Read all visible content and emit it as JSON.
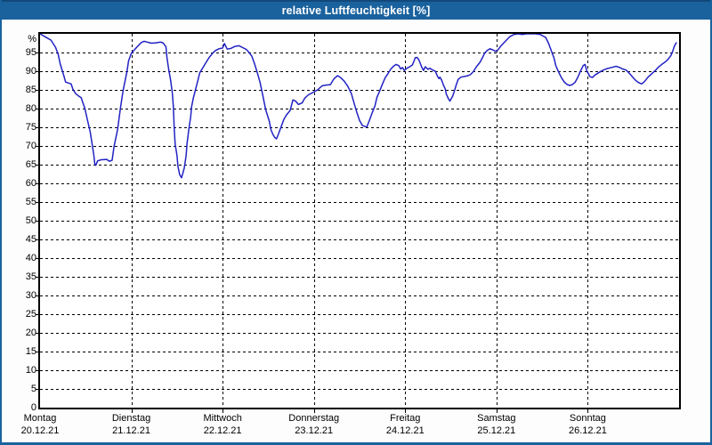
{
  "window": {
    "title": "relative Luftfeuchtigkeit [%]"
  },
  "colors": {
    "titlebar_bg": "#1a629e",
    "titlebar_top_edge": "#11497a",
    "frame_border": "#1a629e",
    "window_bg": "#fcfdfc",
    "plot_bg": "#ffffff",
    "axis": "#000000",
    "grid": "#000000",
    "line": "#2222c4",
    "text": "#000000",
    "title_text": "#ffffff"
  },
  "chart_data": {
    "type": "line",
    "title": "relative Luftfeuchtigkeit [%]",
    "ylabel": "%",
    "xlabel": "",
    "ylim": [
      0,
      100
    ],
    "ytick_step": 5,
    "xlim_days": [
      0,
      7
    ],
    "grid": "dashed black, horizontal every 5 %, vertical at each day boundary",
    "legend": "none",
    "yticks": [
      [
        100,
        "%"
      ],
      [
        95,
        "95"
      ],
      [
        90,
        "90"
      ],
      [
        85,
        "85"
      ],
      [
        80,
        "80"
      ],
      [
        75,
        "75"
      ],
      [
        70,
        "70"
      ],
      [
        65,
        "65"
      ],
      [
        60,
        "60"
      ],
      [
        55,
        "55"
      ],
      [
        50,
        "50"
      ],
      [
        45,
        "45"
      ],
      [
        40,
        "40"
      ],
      [
        35,
        "35"
      ],
      [
        30,
        "30"
      ],
      [
        25,
        "25"
      ],
      [
        20,
        "20"
      ],
      [
        15,
        "15"
      ],
      [
        10,
        "10"
      ],
      [
        5,
        "5"
      ],
      [
        0,
        "0"
      ]
    ],
    "days": [
      {
        "name": "Montag",
        "date": "20.12.21"
      },
      {
        "name": "Dienstag",
        "date": "21.12.21"
      },
      {
        "name": "Mittwoch",
        "date": "22.12.21"
      },
      {
        "name": "Donnerstag",
        "date": "23.12.21"
      },
      {
        "name": "Freitag",
        "date": "24.12.21"
      },
      {
        "name": "Samstag",
        "date": "25.12.21"
      },
      {
        "name": "Sonntag",
        "date": "26.12.21"
      }
    ],
    "series": [
      {
        "name": "relative Luftfeuchtigkeit",
        "unit": "%",
        "color": "#2222c4",
        "x_unit": "days since Montag 20.12.21 00:00",
        "points": [
          [
            0,
            100
          ],
          [
            0.07,
            99
          ],
          [
            0.12,
            98.3
          ],
          [
            0.17,
            96.4
          ],
          [
            0.2,
            94.4
          ],
          [
            0.22,
            92
          ],
          [
            0.26,
            88.8
          ],
          [
            0.28,
            87.1
          ],
          [
            0.34,
            86.6
          ],
          [
            0.36,
            85.2
          ],
          [
            0.39,
            84
          ],
          [
            0.42,
            83.4
          ],
          [
            0.45,
            82.9
          ],
          [
            0.49,
            80.1
          ],
          [
            0.52,
            76.9
          ],
          [
            0.55,
            73.7
          ],
          [
            0.57,
            70.5
          ],
          [
            0.59,
            67.4
          ],
          [
            0.6,
            65.2
          ],
          [
            0.61,
            64.8
          ],
          [
            0.63,
            66
          ],
          [
            0.67,
            66.3
          ],
          [
            0.73,
            66.4
          ],
          [
            0.76,
            65.9
          ],
          [
            0.79,
            66.2
          ],
          [
            0.81,
            69.8
          ],
          [
            0.85,
            74.5
          ],
          [
            0.88,
            80.1
          ],
          [
            0.91,
            84.8
          ],
          [
            0.95,
            89.6
          ],
          [
            0.97,
            92.8
          ],
          [
            1,
            94.8
          ],
          [
            1.04,
            95.9
          ],
          [
            1.07,
            96.7
          ],
          [
            1.11,
            97.7
          ],
          [
            1.14,
            98
          ],
          [
            1.17,
            97.8
          ],
          [
            1.22,
            97.5
          ],
          [
            1.27,
            97.6
          ],
          [
            1.32,
            97.8
          ],
          [
            1.35,
            97.5
          ],
          [
            1.38,
            96.5
          ],
          [
            1.39,
            93.6
          ],
          [
            1.41,
            90.4
          ],
          [
            1.43,
            87.6
          ],
          [
            1.45,
            84
          ],
          [
            1.46,
            80.5
          ],
          [
            1.47,
            74.5
          ],
          [
            1.48,
            70.5
          ],
          [
            1.5,
            67.4
          ],
          [
            1.51,
            64.6
          ],
          [
            1.53,
            62.3
          ],
          [
            1.55,
            61.5
          ],
          [
            1.56,
            62.3
          ],
          [
            1.58,
            64.2
          ],
          [
            1.6,
            67.4
          ],
          [
            1.61,
            70.5
          ],
          [
            1.63,
            74.5
          ],
          [
            1.65,
            77.7
          ],
          [
            1.66,
            80.5
          ],
          [
            1.68,
            82.9
          ],
          [
            1.7,
            84.8
          ],
          [
            1.73,
            87.6
          ],
          [
            1.75,
            89.6
          ],
          [
            1.79,
            91.2
          ],
          [
            1.82,
            92.4
          ],
          [
            1.85,
            93.6
          ],
          [
            1.89,
            94.8
          ],
          [
            1.92,
            95.5
          ],
          [
            1.96,
            96
          ],
          [
            2,
            96.2
          ],
          [
            2.02,
            97.4
          ],
          [
            2.05,
            95.9
          ],
          [
            2.09,
            96.1
          ],
          [
            2.13,
            96.6
          ],
          [
            2.18,
            96.8
          ],
          [
            2.22,
            96.3
          ],
          [
            2.26,
            95.8
          ],
          [
            2.29,
            95
          ],
          [
            2.32,
            94
          ],
          [
            2.35,
            92
          ],
          [
            2.38,
            89.6
          ],
          [
            2.41,
            87
          ],
          [
            2.44,
            83.5
          ],
          [
            2.47,
            79.8
          ],
          [
            2.51,
            76.7
          ],
          [
            2.53,
            74.3
          ],
          [
            2.55,
            73.1
          ],
          [
            2.57,
            72.3
          ],
          [
            2.59,
            71.9
          ],
          [
            2.61,
            73.1
          ],
          [
            2.64,
            75.1
          ],
          [
            2.67,
            77.1
          ],
          [
            2.7,
            78.3
          ],
          [
            2.74,
            79.5
          ],
          [
            2.77,
            82.3
          ],
          [
            2.8,
            82
          ],
          [
            2.83,
            81.1
          ],
          [
            2.87,
            81.5
          ],
          [
            2.9,
            82.8
          ],
          [
            2.94,
            83.7
          ],
          [
            2.99,
            84.3
          ],
          [
            3.04,
            85
          ],
          [
            3.09,
            86.1
          ],
          [
            3.14,
            86.3
          ],
          [
            3.18,
            86.4
          ],
          [
            3.22,
            88
          ],
          [
            3.26,
            88.8
          ],
          [
            3.29,
            88.3
          ],
          [
            3.33,
            87.4
          ],
          [
            3.37,
            86
          ],
          [
            3.41,
            84
          ],
          [
            3.44,
            81.5
          ],
          [
            3.47,
            79
          ],
          [
            3.5,
            76.8
          ],
          [
            3.53,
            75.5
          ],
          [
            3.56,
            75.2
          ],
          [
            3.58,
            75.1
          ],
          [
            3.61,
            77
          ],
          [
            3.64,
            79
          ],
          [
            3.67,
            80.8
          ],
          [
            3.69,
            83
          ],
          [
            3.72,
            84.7
          ],
          [
            3.75,
            86.5
          ],
          [
            3.78,
            88.2
          ],
          [
            3.81,
            89.3
          ],
          [
            3.84,
            90.5
          ],
          [
            3.87,
            91.3
          ],
          [
            3.9,
            91.8
          ],
          [
            3.93,
            91.5
          ],
          [
            3.95,
            90.6
          ],
          [
            3.97,
            91
          ],
          [
            3.99,
            90.2
          ],
          [
            4.02,
            90.8
          ],
          [
            4.05,
            91.2
          ],
          [
            4.08,
            91.7
          ],
          [
            4.11,
            93.6
          ],
          [
            4.13,
            93.7
          ],
          [
            4.15,
            93
          ],
          [
            4.18,
            91.2
          ],
          [
            4.2,
            90.2
          ],
          [
            4.22,
            91.2
          ],
          [
            4.25,
            90.5
          ],
          [
            4.27,
            90.8
          ],
          [
            4.3,
            90.3
          ],
          [
            4.33,
            90
          ],
          [
            4.35,
            88.8
          ],
          [
            4.37,
            88
          ],
          [
            4.38,
            88.4
          ],
          [
            4.4,
            87.6
          ],
          [
            4.42,
            86.2
          ],
          [
            4.44,
            85.2
          ],
          [
            4.45,
            83.9
          ],
          [
            4.47,
            82.8
          ],
          [
            4.49,
            82
          ],
          [
            4.52,
            83.3
          ],
          [
            4.54,
            84.8
          ],
          [
            4.56,
            86.4
          ],
          [
            4.58,
            87.8
          ],
          [
            4.61,
            88.4
          ],
          [
            4.65,
            88.6
          ],
          [
            4.69,
            88.8
          ],
          [
            4.72,
            89.2
          ],
          [
            4.75,
            90
          ],
          [
            4.78,
            91.2
          ],
          [
            4.82,
            92.4
          ],
          [
            4.85,
            93.8
          ],
          [
            4.87,
            94.8
          ],
          [
            4.9,
            95.6
          ],
          [
            4.93,
            96
          ],
          [
            4.96,
            95.7
          ],
          [
            4.99,
            95.3
          ],
          [
            5.02,
            95.8
          ],
          [
            5.05,
            96.8
          ],
          [
            5.08,
            97.6
          ],
          [
            5.12,
            98.6
          ],
          [
            5.15,
            99.3
          ],
          [
            5.19,
            99.8
          ],
          [
            5.24,
            100
          ],
          [
            5.28,
            99.8
          ],
          [
            5.33,
            100
          ],
          [
            5.38,
            100
          ],
          [
            5.43,
            100
          ],
          [
            5.48,
            99.8
          ],
          [
            5.51,
            99.4
          ],
          [
            5.54,
            99
          ],
          [
            5.57,
            97.5
          ],
          [
            5.6,
            95.5
          ],
          [
            5.63,
            93.5
          ],
          [
            5.65,
            91.5
          ],
          [
            5.68,
            89.8
          ],
          [
            5.71,
            88.3
          ],
          [
            5.74,
            87.2
          ],
          [
            5.77,
            86.5
          ],
          [
            5.8,
            86.2
          ],
          [
            5.83,
            86.4
          ],
          [
            5.86,
            87
          ],
          [
            5.89,
            88.3
          ],
          [
            5.92,
            90
          ],
          [
            5.95,
            91.5
          ],
          [
            5.97,
            91.8
          ],
          [
            5.99,
            90
          ],
          [
            6.01,
            89.2
          ],
          [
            6.02,
            88.6
          ],
          [
            6.05,
            88.3
          ],
          [
            6.08,
            89
          ],
          [
            6.12,
            89.6
          ],
          [
            6.16,
            90.2
          ],
          [
            6.21,
            90.7
          ],
          [
            6.26,
            91
          ],
          [
            6.31,
            91.3
          ],
          [
            6.35,
            91
          ],
          [
            6.38,
            90.6
          ],
          [
            6.42,
            90.3
          ],
          [
            6.46,
            89.3
          ],
          [
            6.5,
            88.2
          ],
          [
            6.53,
            87.4
          ],
          [
            6.56,
            86.9
          ],
          [
            6.59,
            86.6
          ],
          [
            6.62,
            87.2
          ],
          [
            6.66,
            88.4
          ],
          [
            6.7,
            89.3
          ],
          [
            6.74,
            90.2
          ],
          [
            6.77,
            91
          ],
          [
            6.81,
            91.8
          ],
          [
            6.85,
            92.5
          ],
          [
            6.88,
            93.2
          ],
          [
            6.91,
            94.2
          ],
          [
            6.93,
            95.3
          ],
          [
            6.95,
            96.8
          ],
          [
            6.97,
            97.6
          ]
        ]
      }
    ]
  }
}
